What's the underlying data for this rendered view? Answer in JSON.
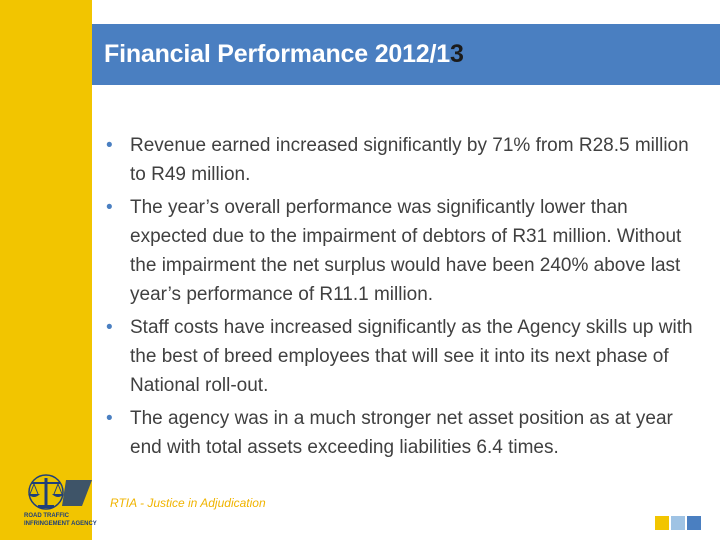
{
  "slide": {
    "title": "Financial Performance 2012/1",
    "title_last_char": "3",
    "bullets": [
      "Revenue earned increased significantly by 71% from R28.5 million to R49 million.",
      "The year’s overall performance was significantly lower than expected due to the impairment of debtors of R31 million. Without the impairment the net surplus would have been 240% above last year’s performance of R11.1 million.",
      "Staff costs have increased significantly as the Agency skills up with the best of breed employees that will see it into its next phase of National roll-out.",
      "The agency was in a much stronger net asset position as at year end with total assets exceeding liabilities 6.4 times."
    ],
    "bullet_symbol": "•",
    "footer": "RTIA - Justice in Adjudication"
  },
  "logo": {
    "line1": "ROAD TRAFFIC",
    "line2": "INFRINGEMENT AGENCY",
    "icon": "scales-of-justice-icon"
  },
  "colors": {
    "left_bar": "#f2c500",
    "title_bar": "#4a7fc1",
    "footer_text": "#f0b400",
    "body_text": "#404040"
  }
}
